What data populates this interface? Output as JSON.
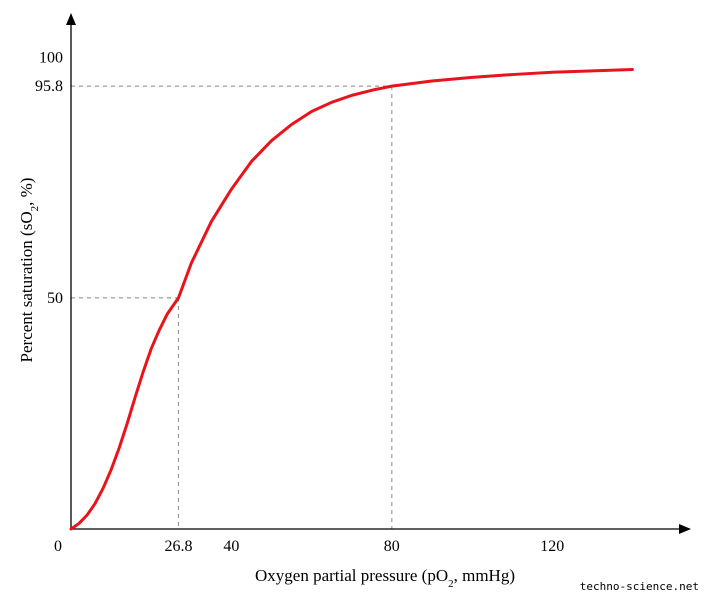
{
  "chart_data": {
    "type": "line",
    "xlabel_main": "Oxygen partial pressure (pO",
    "xlabel_sub": "2",
    "xlabel_tail": ", mmHg)",
    "ylabel_main": "Percent saturation (sO",
    "ylabel_sub": "2",
    "ylabel_tail": ", %)",
    "xlim": [
      0,
      142
    ],
    "ylim": [
      0,
      100
    ],
    "x_ticks": [
      {
        "value": 0,
        "label": "0"
      },
      {
        "value": 26.8,
        "label": "26.8"
      },
      {
        "value": 40,
        "label": "40"
      },
      {
        "value": 80,
        "label": "80"
      },
      {
        "value": 120,
        "label": "120"
      }
    ],
    "y_ticks": [
      {
        "value": 50,
        "label": "50"
      },
      {
        "value": 95.8,
        "label": "95.8"
      },
      {
        "value": 100,
        "label": "100"
      }
    ],
    "reference_points": [
      {
        "x": 26.8,
        "y": 50
      },
      {
        "x": 80,
        "y": 95.8
      }
    ],
    "series": [
      {
        "color": "#e8141b",
        "x": [
          0,
          2,
          4,
          6,
          8,
          10,
          12,
          14,
          16,
          18,
          20,
          22,
          24,
          26.8,
          30,
          35,
          40,
          45,
          50,
          55,
          60,
          65,
          70,
          75,
          80,
          90,
          100,
          110,
          120,
          130,
          140
        ],
        "y": [
          0,
          1.2,
          3.0,
          5.5,
          8.8,
          12.8,
          17.5,
          22.8,
          28.5,
          34.0,
          39.0,
          43.0,
          46.5,
          50,
          57.5,
          66.5,
          73.5,
          79.5,
          84.0,
          87.5,
          90.3,
          92.3,
          93.8,
          94.9,
          95.8,
          96.9,
          97.7,
          98.3,
          98.8,
          99.1,
          99.4
        ]
      }
    ]
  },
  "credit": "techno-science.net"
}
